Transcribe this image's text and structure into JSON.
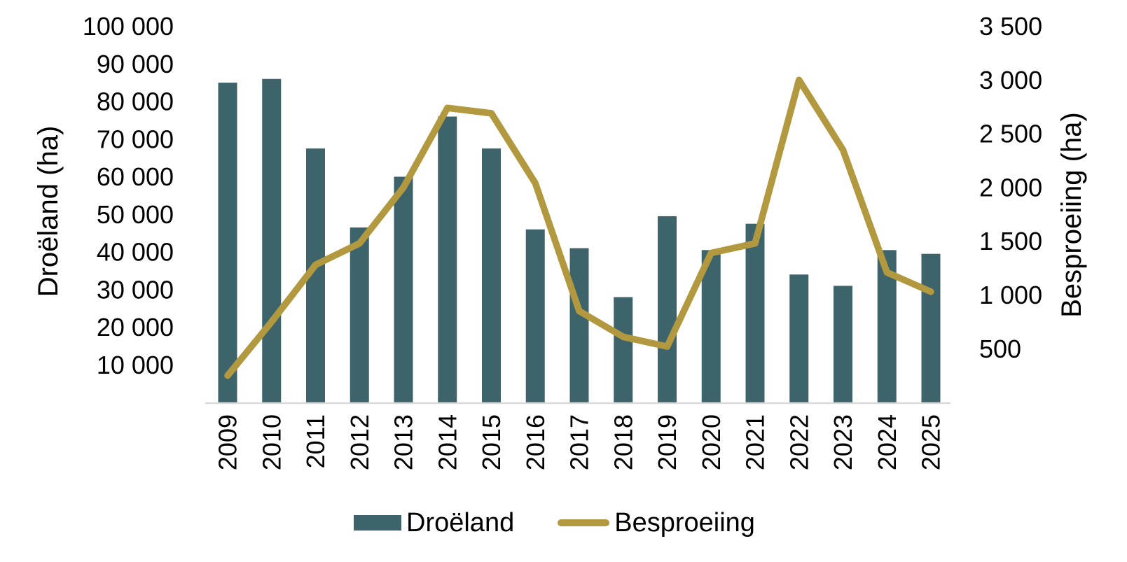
{
  "chart": {
    "title": "",
    "left_axis": {
      "title": "Droëland (ha)",
      "tick_values": [
        10000,
        20000,
        30000,
        40000,
        50000,
        60000,
        70000,
        80000,
        90000,
        100000
      ],
      "tick_labels": [
        "10 000",
        "20 000",
        "30 000",
        "40 000",
        "50 000",
        "60 000",
        "70 000",
        "80 000",
        "90 000",
        "100 000"
      ]
    },
    "right_axis": {
      "title": "Besproeiing (ha)",
      "tick_values": [
        500,
        1000,
        1500,
        2000,
        2500,
        3000,
        3500
      ],
      "tick_labels": [
        "500",
        "1 000",
        "1 500",
        "2 000",
        "2 500",
        "3 000",
        "3 500"
      ]
    },
    "legend_labels": [
      "Droëland",
      "Besproeiing"
    ],
    "colors": {
      "bar": "#3E646B",
      "line": "#B2983E",
      "axis_line": "#D9D9D9",
      "text": "#000000"
    }
  },
  "chart_data": {
    "type": "bar+line combo",
    "categories": [
      "2009",
      "2010",
      "2011",
      "2012",
      "2013",
      "2014",
      "2015",
      "2016",
      "2017",
      "2018",
      "2019",
      "2020",
      "2021",
      "2022",
      "2023",
      "2024",
      "2025"
    ],
    "series": [
      {
        "name": "Droëland",
        "type": "bar",
        "axis": "left",
        "color": "#3E646B",
        "values": [
          85000,
          86000,
          67500,
          46500,
          60000,
          76000,
          67500,
          46000,
          41000,
          28000,
          49500,
          40500,
          47500,
          34000,
          31000,
          40500,
          39500
        ]
      },
      {
        "name": "Besproeiing",
        "type": "line",
        "axis": "right",
        "color": "#B2983E",
        "values": [
          250,
          750,
          1280,
          1480,
          2000,
          2740,
          2690,
          2040,
          850,
          610,
          520,
          1390,
          1480,
          3000,
          2350,
          1210,
          1030
        ]
      }
    ],
    "left_ylim": [
      0,
      100000
    ],
    "right_ylim": [
      0,
      3500
    ],
    "xlabel": "",
    "left_ylabel": "Droëland (ha)",
    "right_ylabel": "Besproeiing (ha)",
    "grid": false,
    "legend_position": "bottom"
  }
}
